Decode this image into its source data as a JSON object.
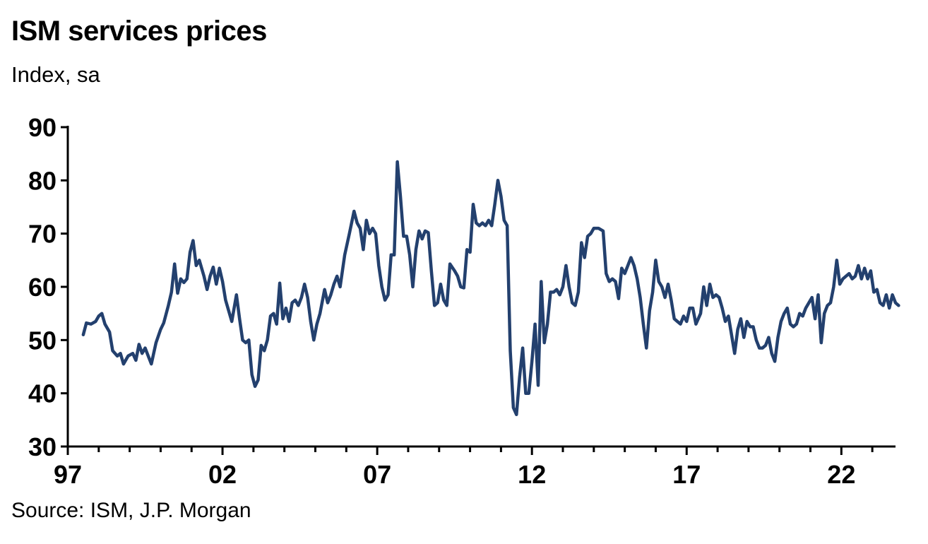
{
  "title": "ISM services prices",
  "subtitle": "Index, sa",
  "source": "Source: ISM, J.P. Morgan",
  "chart_data": {
    "type": "line",
    "title": "ISM services prices",
    "ylabel": "Index, sa",
    "xlabel": "",
    "ylim": [
      30,
      90
    ],
    "xlim": [
      1997.0,
      2023.75
    ],
    "yticks": [
      30,
      40,
      50,
      60,
      70,
      80,
      90
    ],
    "xticks": [
      {
        "label": "97",
        "value": 1997.0
      },
      {
        "label": "02",
        "value": 2002.0
      },
      {
        "label": "07",
        "value": 2007.0
      },
      {
        "label": "12",
        "value": 2012.0
      },
      {
        "label": "17",
        "value": 2017.0
      },
      {
        "label": "22",
        "value": 2022.0
      }
    ],
    "grid": false,
    "line_color": "#23406e",
    "series": [
      {
        "points": [
          [
            1997.5,
            51.0
          ],
          [
            1997.6,
            53.2
          ],
          [
            1997.75,
            53.0
          ],
          [
            1997.9,
            53.5
          ],
          [
            1998.0,
            54.5
          ],
          [
            1998.1,
            55.0
          ],
          [
            1998.2,
            53.0
          ],
          [
            1998.35,
            51.5
          ],
          [
            1998.45,
            48.0
          ],
          [
            1998.6,
            47.0
          ],
          [
            1998.7,
            47.5
          ],
          [
            1998.8,
            45.5
          ],
          [
            1998.95,
            47.0
          ],
          [
            1999.1,
            47.5
          ],
          [
            1999.2,
            46.2
          ],
          [
            1999.3,
            49.2
          ],
          [
            1999.4,
            47.5
          ],
          [
            1999.5,
            48.5
          ],
          [
            1999.6,
            47.0
          ],
          [
            1999.7,
            45.5
          ],
          [
            1999.85,
            49.5
          ],
          [
            2000.0,
            52.0
          ],
          [
            2000.1,
            53.2
          ],
          [
            2000.25,
            56.5
          ],
          [
            2000.35,
            59.0
          ],
          [
            2000.45,
            64.3
          ],
          [
            2000.55,
            58.8
          ],
          [
            2000.65,
            61.5
          ],
          [
            2000.75,
            60.8
          ],
          [
            2000.85,
            61.5
          ],
          [
            2000.95,
            66.5
          ],
          [
            2001.05,
            68.7
          ],
          [
            2001.15,
            64.0
          ],
          [
            2001.25,
            65.0
          ],
          [
            2001.4,
            62.0
          ],
          [
            2001.5,
            59.5
          ],
          [
            2001.6,
            62.0
          ],
          [
            2001.7,
            63.7
          ],
          [
            2001.8,
            60.5
          ],
          [
            2001.9,
            63.5
          ],
          [
            2002.0,
            61.0
          ],
          [
            2002.1,
            57.5
          ],
          [
            2002.2,
            55.5
          ],
          [
            2002.3,
            53.5
          ],
          [
            2002.45,
            58.5
          ],
          [
            2002.55,
            54.0
          ],
          [
            2002.65,
            50.0
          ],
          [
            2002.75,
            49.5
          ],
          [
            2002.85,
            50.0
          ],
          [
            2002.95,
            43.5
          ],
          [
            2003.05,
            41.3
          ],
          [
            2003.15,
            42.5
          ],
          [
            2003.25,
            49.0
          ],
          [
            2003.35,
            48.0
          ],
          [
            2003.45,
            50.0
          ],
          [
            2003.55,
            54.5
          ],
          [
            2003.65,
            55.0
          ],
          [
            2003.75,
            53.0
          ],
          [
            2003.85,
            60.7
          ],
          [
            2003.95,
            54.0
          ],
          [
            2004.05,
            56.0
          ],
          [
            2004.15,
            53.5
          ],
          [
            2004.25,
            57.0
          ],
          [
            2004.35,
            57.5
          ],
          [
            2004.45,
            56.5
          ],
          [
            2004.55,
            58.0
          ],
          [
            2004.65,
            60.5
          ],
          [
            2004.75,
            58.0
          ],
          [
            2004.85,
            53.5
          ],
          [
            2004.95,
            50.0
          ],
          [
            2005.05,
            53.0
          ],
          [
            2005.15,
            55.0
          ],
          [
            2005.3,
            59.5
          ],
          [
            2005.4,
            57.0
          ],
          [
            2005.5,
            58.5
          ],
          [
            2005.6,
            60.5
          ],
          [
            2005.7,
            62.0
          ],
          [
            2005.8,
            60.0
          ],
          [
            2005.95,
            66.0
          ],
          [
            2006.1,
            70.0
          ],
          [
            2006.25,
            74.2
          ],
          [
            2006.35,
            72.0
          ],
          [
            2006.45,
            71.0
          ],
          [
            2006.55,
            67.0
          ],
          [
            2006.65,
            72.5
          ],
          [
            2006.75,
            70.0
          ],
          [
            2006.85,
            71.0
          ],
          [
            2006.95,
            70.0
          ],
          [
            2007.05,
            64.0
          ],
          [
            2007.15,
            60.0
          ],
          [
            2007.25,
            57.5
          ],
          [
            2007.35,
            58.5
          ],
          [
            2007.45,
            66.0
          ],
          [
            2007.55,
            66.0
          ],
          [
            2007.65,
            83.5
          ],
          [
            2007.75,
            77.0
          ],
          [
            2007.85,
            69.5
          ],
          [
            2007.95,
            69.5
          ],
          [
            2008.05,
            66.0
          ],
          [
            2008.15,
            60.0
          ],
          [
            2008.25,
            67.0
          ],
          [
            2008.35,
            70.5
          ],
          [
            2008.45,
            69.0
          ],
          [
            2008.55,
            70.5
          ],
          [
            2008.65,
            70.2
          ],
          [
            2008.75,
            63.0
          ],
          [
            2008.85,
            56.5
          ],
          [
            2008.95,
            57.0
          ],
          [
            2009.05,
            60.5
          ],
          [
            2009.15,
            57.5
          ],
          [
            2009.25,
            56.5
          ],
          [
            2009.35,
            64.3
          ],
          [
            2009.5,
            63.0
          ],
          [
            2009.6,
            62.0
          ],
          [
            2009.7,
            60.0
          ],
          [
            2009.8,
            59.8
          ],
          [
            2009.9,
            67.0
          ],
          [
            2010.0,
            66.5
          ],
          [
            2010.1,
            75.5
          ],
          [
            2010.2,
            72.0
          ],
          [
            2010.3,
            71.5
          ],
          [
            2010.4,
            72.0
          ],
          [
            2010.5,
            71.5
          ],
          [
            2010.6,
            72.5
          ],
          [
            2010.7,
            71.5
          ],
          [
            2010.8,
            75.5
          ],
          [
            2010.9,
            80.0
          ],
          [
            2011.0,
            77.0
          ],
          [
            2011.1,
            72.5
          ],
          [
            2011.2,
            71.5
          ],
          [
            2011.3,
            48.0
          ],
          [
            2011.4,
            37.3
          ],
          [
            2011.5,
            36.0
          ],
          [
            2011.6,
            43.0
          ],
          [
            2011.7,
            48.5
          ],
          [
            2011.8,
            40.0
          ],
          [
            2011.9,
            40.0
          ],
          [
            2012.0,
            46.0
          ],
          [
            2012.1,
            53.0
          ],
          [
            2012.2,
            41.5
          ],
          [
            2012.3,
            61.0
          ],
          [
            2012.4,
            49.5
          ],
          [
            2012.5,
            53.0
          ],
          [
            2012.6,
            59.0
          ],
          [
            2012.7,
            59.0
          ],
          [
            2012.8,
            59.5
          ],
          [
            2012.9,
            58.5
          ],
          [
            2013.0,
            60.0
          ],
          [
            2013.1,
            64.0
          ],
          [
            2013.2,
            60.0
          ],
          [
            2013.3,
            57.0
          ],
          [
            2013.4,
            56.5
          ],
          [
            2013.5,
            59.0
          ],
          [
            2013.6,
            68.3
          ],
          [
            2013.7,
            65.5
          ],
          [
            2013.8,
            69.5
          ],
          [
            2013.9,
            70.0
          ],
          [
            2014.0,
            71.0
          ],
          [
            2014.15,
            71.0
          ],
          [
            2014.3,
            70.5
          ],
          [
            2014.4,
            62.5
          ],
          [
            2014.5,
            61.0
          ],
          [
            2014.6,
            61.5
          ],
          [
            2014.7,
            61.0
          ],
          [
            2014.8,
            57.8
          ],
          [
            2014.9,
            63.5
          ],
          [
            2015.0,
            62.5
          ],
          [
            2015.1,
            64.0
          ],
          [
            2015.2,
            65.5
          ],
          [
            2015.3,
            64.0
          ],
          [
            2015.4,
            61.5
          ],
          [
            2015.5,
            58.0
          ],
          [
            2015.6,
            53.0
          ],
          [
            2015.7,
            48.5
          ],
          [
            2015.8,
            55.5
          ],
          [
            2015.9,
            59.0
          ],
          [
            2016.0,
            65.0
          ],
          [
            2016.1,
            61.0
          ],
          [
            2016.2,
            60.0
          ],
          [
            2016.3,
            58.0
          ],
          [
            2016.4,
            60.5
          ],
          [
            2016.5,
            57.5
          ],
          [
            2016.6,
            54.0
          ],
          [
            2016.7,
            53.5
          ],
          [
            2016.8,
            53.0
          ],
          [
            2016.9,
            54.5
          ],
          [
            2017.0,
            53.5
          ],
          [
            2017.1,
            56.0
          ],
          [
            2017.2,
            56.0
          ],
          [
            2017.3,
            53.0
          ],
          [
            2017.45,
            55.0
          ],
          [
            2017.55,
            60.0
          ],
          [
            2017.65,
            56.5
          ],
          [
            2017.75,
            60.5
          ],
          [
            2017.85,
            58.0
          ],
          [
            2017.95,
            58.5
          ],
          [
            2018.05,
            58.0
          ],
          [
            2018.15,
            56.0
          ],
          [
            2018.25,
            53.5
          ],
          [
            2018.35,
            54.5
          ],
          [
            2018.45,
            51.0
          ],
          [
            2018.55,
            47.5
          ],
          [
            2018.65,
            52.0
          ],
          [
            2018.75,
            54.0
          ],
          [
            2018.85,
            50.5
          ],
          [
            2018.95,
            53.5
          ],
          [
            2019.05,
            52.5
          ],
          [
            2019.15,
            52.5
          ],
          [
            2019.25,
            50.0
          ],
          [
            2019.35,
            48.5
          ],
          [
            2019.45,
            48.5
          ],
          [
            2019.55,
            49.0
          ],
          [
            2019.65,
            50.5
          ],
          [
            2019.75,
            47.5
          ],
          [
            2019.85,
            46.0
          ],
          [
            2019.95,
            50.5
          ],
          [
            2020.05,
            53.5
          ],
          [
            2020.15,
            55.0
          ],
          [
            2020.25,
            56.0
          ],
          [
            2020.35,
            53.0
          ],
          [
            2020.45,
            52.5
          ],
          [
            2020.55,
            53.0
          ],
          [
            2020.65,
            55.0
          ],
          [
            2020.75,
            54.5
          ],
          [
            2020.85,
            56.0
          ],
          [
            2020.95,
            57.0
          ],
          [
            2021.05,
            58.0
          ],
          [
            2021.15,
            54.0
          ],
          [
            2021.25,
            58.5
          ],
          [
            2021.35,
            49.5
          ],
          [
            2021.45,
            55.0
          ],
          [
            2021.55,
            56.5
          ],
          [
            2021.65,
            57.0
          ],
          [
            2021.75,
            60.0
          ],
          [
            2021.85,
            65.0
          ],
          [
            2021.95,
            60.5
          ],
          [
            2022.05,
            61.5
          ],
          [
            2022.15,
            62.0
          ],
          [
            2022.25,
            62.5
          ],
          [
            2022.35,
            61.5
          ],
          [
            2022.45,
            62.0
          ],
          [
            2022.55,
            64.0
          ],
          [
            2022.65,
            61.5
          ],
          [
            2022.75,
            63.5
          ],
          [
            2022.85,
            61.5
          ],
          [
            2022.95,
            63.0
          ],
          [
            2023.05,
            59.0
          ],
          [
            2023.15,
            59.5
          ],
          [
            2023.25,
            57.0
          ],
          [
            2023.35,
            56.5
          ],
          [
            2023.45,
            58.5
          ],
          [
            2023.55,
            56.0
          ],
          [
            2023.65,
            58.5
          ],
          [
            2023.75,
            57.0
          ],
          [
            2023.85,
            56.5
          ]
        ]
      }
    ]
  }
}
